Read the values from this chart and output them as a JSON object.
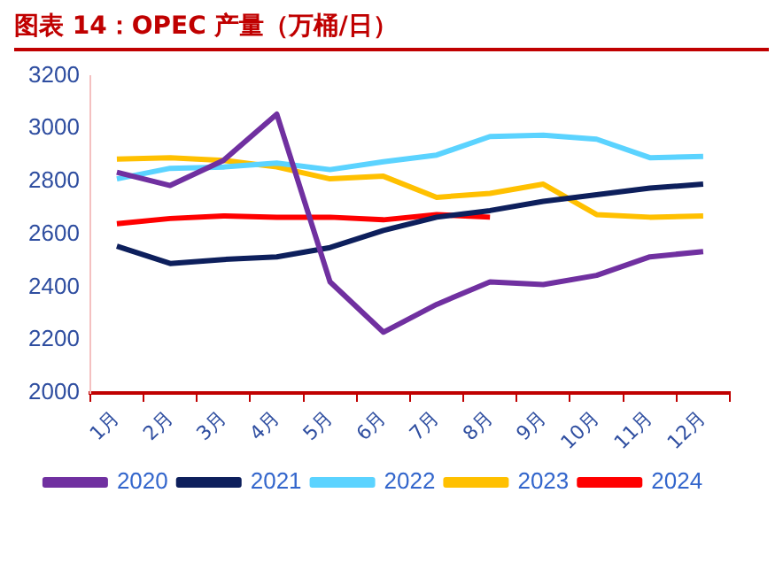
{
  "chart_data": {
    "type": "line",
    "title": "图表 14：OPEC 产量（万桶/日）",
    "categories": [
      "1月",
      "2月",
      "3月",
      "4月",
      "5月",
      "6月",
      "7月",
      "8月",
      "9月",
      "10月",
      "11月",
      "12月"
    ],
    "series": [
      {
        "name": "2020",
        "color": "#7030a0",
        "values": [
          2835,
          2785,
          2880,
          3055,
          2420,
          2230,
          2335,
          2420,
          2410,
          2445,
          2515,
          2535
        ]
      },
      {
        "name": "2021",
        "color": "#0d1f5c",
        "values": [
          2555,
          2490,
          2505,
          2515,
          2550,
          2615,
          2665,
          2690,
          2725,
          2750,
          2775,
          2790
        ]
      },
      {
        "name": "2022",
        "color": "#5bd3ff",
        "values": [
          2810,
          2850,
          2855,
          2870,
          2845,
          2875,
          2900,
          2970,
          2975,
          2960,
          2890,
          2895
        ]
      },
      {
        "name": "2023",
        "color": "#ffc000",
        "values": [
          2885,
          2890,
          2880,
          2855,
          2810,
          2820,
          2740,
          2755,
          2790,
          2675,
          2665,
          2670
        ]
      },
      {
        "name": "2024",
        "color": "#ff0000",
        "values": [
          2640,
          2660,
          2670,
          2665,
          2665,
          2655,
          2675,
          2665,
          null,
          null,
          null,
          null
        ]
      }
    ],
    "ylim": [
      2000,
      3200
    ],
    "yticks": [
      2000,
      2200,
      2400,
      2600,
      2800,
      3000,
      3200
    ],
    "grid": false,
    "legend": "bottom",
    "marker": "none",
    "line_style": "solid"
  }
}
